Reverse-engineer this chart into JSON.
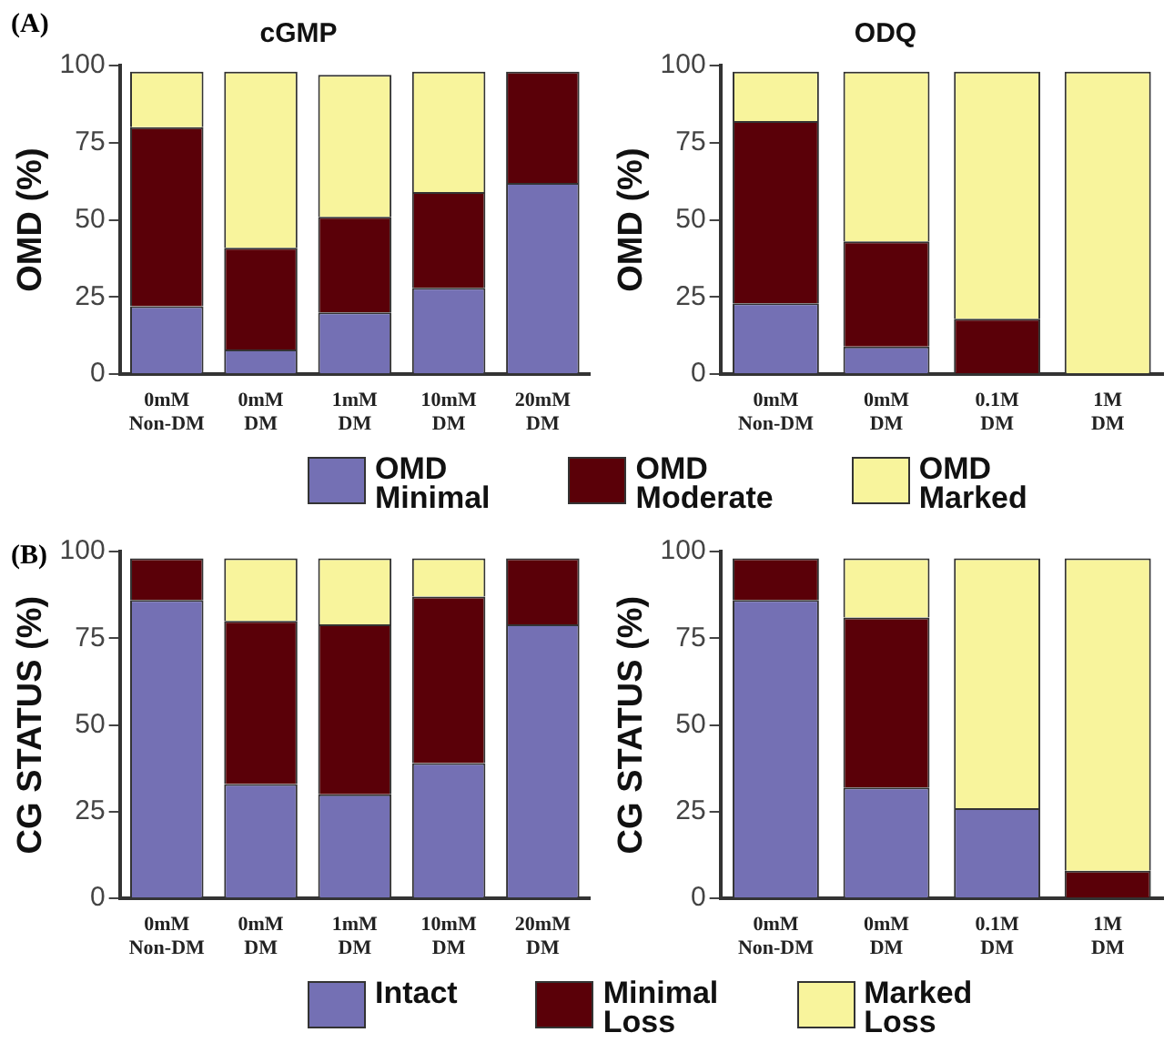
{
  "chart_data": [
    {
      "type": "bar",
      "stacked": true,
      "title": "cGMP",
      "ylabel": "OMD (%)",
      "annotations": [
        "(A)"
      ],
      "categories": [
        "0mM Non-DM",
        "0mM DM",
        "1mM DM",
        "10mM DM",
        "20mM DM"
      ],
      "ylim": [
        0,
        100
      ],
      "yticks": [
        0,
        25,
        50,
        75,
        100
      ],
      "grid": false,
      "legend": "bottom",
      "series": [
        {
          "name": "OMD Minimal",
          "color": "#7470b4",
          "values": [
            22,
            8,
            20,
            28,
            62
          ]
        },
        {
          "name": "OMD Moderate",
          "color": "#5a0008",
          "values": [
            58,
            33,
            31,
            31,
            36
          ]
        },
        {
          "name": "OMD Marked",
          "color": "#f8f49c",
          "values": [
            18,
            57,
            46,
            39,
            0
          ]
        }
      ]
    },
    {
      "type": "bar",
      "stacked": true,
      "title": "ODQ",
      "ylabel": "OMD (%)",
      "categories": [
        "0mM Non-DM",
        "0mM DM",
        "0.1M DM",
        "1M DM"
      ],
      "ylim": [
        0,
        100
      ],
      "yticks": [
        0,
        25,
        50,
        75,
        100
      ],
      "grid": false,
      "series": [
        {
          "color": "#7470b4",
          "values": [
            23,
            9,
            0,
            0
          ]
        },
        {
          "color": "#5a0008",
          "values": [
            59,
            34,
            18,
            0
          ]
        },
        {
          "color": "#f8f49c",
          "values": [
            16,
            55,
            80,
            98
          ]
        }
      ]
    },
    {
      "type": "bar",
      "stacked": true,
      "ylabel": "CG STATUS (%)",
      "annotations": [
        "(B)"
      ],
      "categories": [
        "0mM Non-DM",
        "0mM DM",
        "1mM DM",
        "10mM DM",
        "20mM DM"
      ],
      "ylim": [
        0,
        100
      ],
      "yticks": [
        0,
        25,
        50,
        75,
        100
      ],
      "grid": false,
      "legend": "bottom",
      "series": [
        {
          "name": "Intact",
          "color": "#7470b4",
          "values": [
            86,
            33,
            30,
            39,
            79
          ]
        },
        {
          "name": "Minimal Loss",
          "color": "#5a0008",
          "values": [
            12,
            47,
            49,
            48,
            19
          ]
        },
        {
          "name": "Marked Loss",
          "color": "#f8f49c",
          "values": [
            0,
            18,
            19,
            11,
            0
          ]
        }
      ]
    },
    {
      "type": "bar",
      "stacked": true,
      "ylabel": "CG STATUS (%)",
      "categories": [
        "0mM Non-DM",
        "0mM DM",
        "0.1M DM",
        "1M DM"
      ],
      "ylim": [
        0,
        100
      ],
      "yticks": [
        0,
        25,
        50,
        75,
        100
      ],
      "grid": false,
      "series": [
        {
          "color": "#7470b4",
          "values": [
            86,
            32,
            26,
            0
          ]
        },
        {
          "color": "#5a0008",
          "values": [
            12,
            49,
            0,
            8
          ]
        },
        {
          "color": "#f8f49c",
          "values": [
            0,
            17,
            72,
            90
          ]
        }
      ]
    }
  ]
}
